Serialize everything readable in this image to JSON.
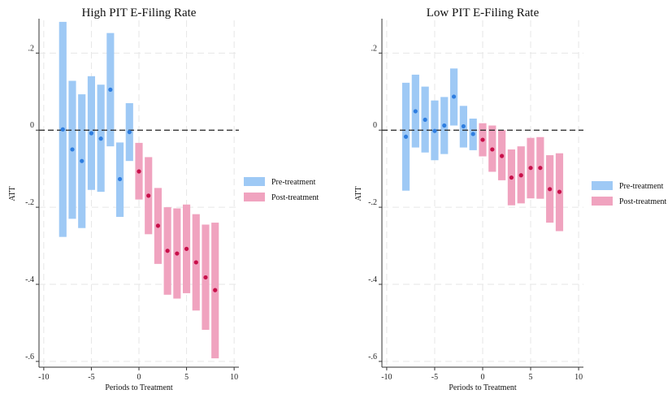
{
  "chart_data": [
    {
      "type": "errorbar",
      "title": "High PIT E-Filing Rate",
      "xlabel": "Periods to Treatment",
      "ylabel": "ATT",
      "xlim": [
        -10.5,
        10.5
      ],
      "ylim": [
        -0.615,
        0.285
      ],
      "xticks": [
        -10,
        -5,
        0,
        5,
        10
      ],
      "xtick_labels": [
        "-10",
        "-5",
        "0",
        "5",
        "10"
      ],
      "yticks": [
        0.2,
        0,
        -0.2,
        -0.4,
        -0.6
      ],
      "ytick_labels": [
        ".2",
        "0",
        "-.2",
        "-.4",
        "-.6"
      ],
      "grid": true,
      "reference_line": 0,
      "legend_position": "right",
      "legend": [
        "Pre-treatment",
        "Post-treatment"
      ],
      "series": [
        {
          "name": "Pre-treatment",
          "color": "#9ec9f5",
          "point_color": "#2f7ee0",
          "x": [
            -8,
            -7,
            -6,
            -5,
            -4,
            -3,
            -2,
            -1
          ],
          "y": [
            0.002,
            -0.05,
            -0.08,
            -0.008,
            -0.022,
            0.105,
            -0.127,
            -0.005
          ],
          "lower": [
            -0.277,
            -0.23,
            -0.254,
            -0.155,
            -0.16,
            -0.042,
            -0.225,
            -0.08
          ],
          "upper": [
            0.281,
            0.128,
            0.093,
            0.14,
            0.118,
            0.252,
            -0.032,
            0.07
          ]
        },
        {
          "name": "Post-treatment",
          "color": "#f0a3bf",
          "point_color": "#c8104a",
          "x": [
            0,
            1,
            2,
            3,
            4,
            5,
            6,
            7,
            8
          ],
          "y": [
            -0.107,
            -0.17,
            -0.248,
            -0.313,
            -0.32,
            -0.308,
            -0.343,
            -0.382,
            -0.415
          ],
          "lower": [
            -0.18,
            -0.27,
            -0.347,
            -0.427,
            -0.437,
            -0.423,
            -0.468,
            -0.518,
            -0.592
          ],
          "upper": [
            -0.033,
            -0.07,
            -0.15,
            -0.2,
            -0.203,
            -0.193,
            -0.218,
            -0.245,
            -0.24
          ]
        }
      ]
    },
    {
      "type": "errorbar",
      "title": "Low PIT E-Filing Rate",
      "xlabel": "Periods to Treatment",
      "ylabel": "ATT",
      "xlim": [
        -10.5,
        10.5
      ],
      "ylim": [
        -0.615,
        0.285
      ],
      "xticks": [
        -10,
        -5,
        0,
        5,
        10
      ],
      "xtick_labels": [
        "-10",
        "-5",
        "0",
        "5",
        "10"
      ],
      "yticks": [
        0.2,
        0,
        -0.2,
        -0.4,
        -0.6
      ],
      "ytick_labels": [
        ".2",
        "0",
        "-.2",
        "-.4",
        "-.6"
      ],
      "grid": true,
      "reference_line": 0,
      "legend_position": "right",
      "legend": [
        "Pre-treatment",
        "Post-treatment"
      ],
      "series": [
        {
          "name": "Pre-treatment",
          "color": "#9ec9f5",
          "point_color": "#2f7ee0",
          "x": [
            -8,
            -7,
            -6,
            -5,
            -4,
            -3,
            -2,
            -1
          ],
          "y": [
            -0.017,
            0.049,
            0.027,
            -0.002,
            0.012,
            0.087,
            0.01,
            -0.01
          ],
          "lower": [
            -0.157,
            -0.045,
            -0.058,
            -0.078,
            -0.062,
            0.012,
            -0.045,
            -0.052
          ],
          "upper": [
            0.123,
            0.144,
            0.113,
            0.077,
            0.086,
            0.16,
            0.063,
            0.03
          ]
        },
        {
          "name": "Post-treatment",
          "color": "#f0a3bf",
          "point_color": "#c8104a",
          "x": [
            0,
            1,
            2,
            3,
            4,
            5,
            6,
            7,
            8
          ],
          "y": [
            -0.025,
            -0.05,
            -0.067,
            -0.123,
            -0.117,
            -0.098,
            -0.098,
            -0.153,
            -0.16
          ],
          "lower": [
            -0.068,
            -0.108,
            -0.13,
            -0.195,
            -0.19,
            -0.177,
            -0.178,
            -0.24,
            -0.262
          ],
          "upper": [
            0.018,
            0.012,
            0.0,
            -0.05,
            -0.042,
            -0.02,
            -0.018,
            -0.065,
            -0.06
          ]
        }
      ]
    }
  ]
}
